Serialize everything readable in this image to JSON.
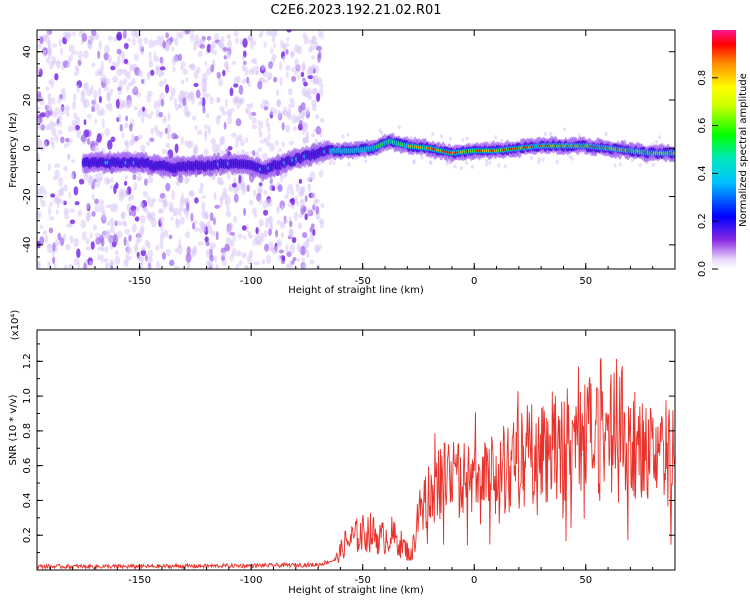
{
  "title": "C2E6.2023.192.21.02.R01",
  "colorbar": {
    "label": "Normalized spectral amplitude",
    "ticks": [
      "0.0",
      "0.2",
      "0.4",
      "0.6",
      "0.8"
    ],
    "range": [
      0,
      1
    ]
  },
  "chart_data": [
    {
      "type": "heatmap",
      "xlabel": "Height of straight line (km)",
      "ylabel": "Frequency (Hz)",
      "xlim": [
        -196,
        90
      ],
      "ylim": [
        -50,
        49
      ],
      "xticks": [
        "-150",
        "-100",
        "-50",
        "0",
        "50"
      ],
      "yticks": [
        "40",
        "20",
        "0",
        "-20",
        "-40"
      ],
      "xtick_values": [
        -150,
        -100,
        -50,
        0,
        50
      ],
      "ytick_values": [
        40,
        20,
        0,
        -20,
        -40
      ],
      "ridge": {
        "x": [
          -165,
          -150,
          -135,
          -120,
          -105,
          -95,
          -85,
          -75,
          -65,
          -55,
          -45,
          -38,
          -30,
          -20,
          -10,
          0,
          10,
          20,
          30,
          40,
          50,
          60,
          70,
          80,
          90
        ],
        "y": [
          -6,
          -6,
          -8,
          -7,
          -6,
          -9,
          -6,
          -3,
          -1,
          -1,
          0,
          3,
          1,
          0,
          -2,
          -1,
          -1,
          0,
          1,
          1,
          1,
          0,
          -1,
          -2,
          -2
        ]
      },
      "strong_band_x": [
        -65,
        90
      ],
      "noise_cutoff_x": -68
    },
    {
      "type": "line",
      "xlabel": "Height of straight line (km)",
      "ylabel": "SNR (10 * v/v)",
      "y_multiplier": "(x10⁴)",
      "xlim": [
        -196,
        90
      ],
      "ylim": [
        0,
        1.38
      ],
      "xticks": [
        "-150",
        "-100",
        "-50",
        "0",
        "50"
      ],
      "yticks": [
        "0.2",
        "0.4",
        "0.6",
        "0.8",
        "1.0",
        "1.2"
      ],
      "xtick_values": [
        -150,
        -100,
        -50,
        0,
        50
      ],
      "ytick_values": [
        0.2,
        0.4,
        0.6,
        0.8,
        1.0,
        1.2
      ],
      "color": "#e8312a",
      "envelope": {
        "x": [
          -196,
          -150,
          -100,
          -70,
          -62,
          -58,
          -52,
          -47,
          -42,
          -37,
          -32,
          -28,
          -25,
          -20,
          -10,
          0,
          10,
          20,
          30,
          40,
          50,
          60,
          65,
          70,
          80,
          90
        ],
        "y": [
          0.02,
          0.02,
          0.025,
          0.03,
          0.06,
          0.15,
          0.2,
          0.22,
          0.18,
          0.2,
          0.14,
          0.08,
          0.35,
          0.45,
          0.55,
          0.5,
          0.55,
          0.62,
          0.7,
          0.72,
          0.78,
          0.78,
          0.82,
          0.72,
          0.7,
          0.65
        ]
      }
    }
  ]
}
